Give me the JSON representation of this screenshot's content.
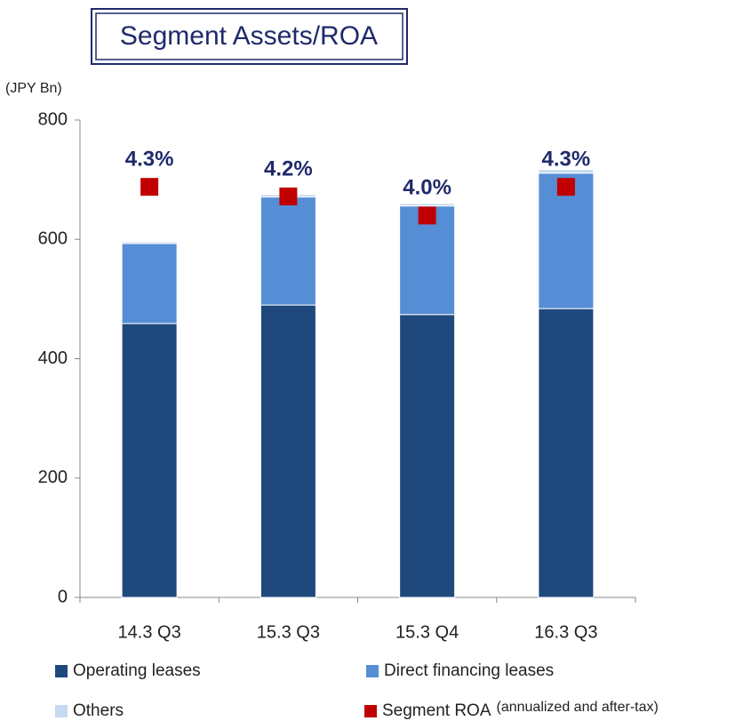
{
  "chart_data": {
    "type": "bar",
    "title": "Segment Assets/ROA",
    "y_label": "(JPY Bn)",
    "categories": [
      "14.3 Q3",
      "15.3 Q3",
      "15.3 Q4",
      "16.3 Q3"
    ],
    "series": [
      {
        "name": "Operating leases",
        "color": "#1f497d",
        "values": [
          459,
          490,
          474,
          484
        ]
      },
      {
        "name": "Direct financing leases",
        "color": "#558ed5",
        "values": [
          134,
          181,
          182,
          227
        ]
      },
      {
        "name": "Others",
        "color": "#c6d9f1",
        "values": [
          3,
          4,
          4,
          6
        ]
      },
      {
        "name": "Segment ROA",
        "type": "scatter",
        "axis": "y2",
        "color": "#c00000",
        "values": [
          4.3,
          4.2,
          4.0,
          4.3
        ],
        "value_labels": [
          "4.3%",
          "4.2%",
          "4.0%",
          "4.3%"
        ]
      }
    ],
    "roa_note": "(annualized and after-tax)",
    "ylim": [
      0,
      800
    ],
    "yticks": [
      0,
      200,
      400,
      600,
      800
    ],
    "y2lim": [
      0,
      5
    ],
    "legend": "bottom"
  }
}
